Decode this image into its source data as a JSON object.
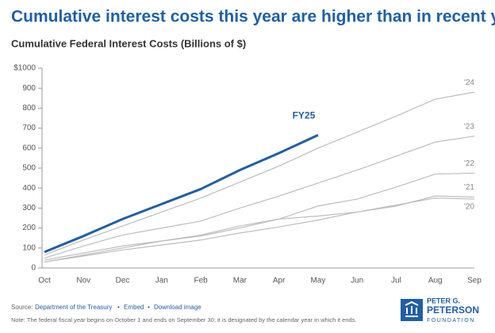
{
  "chart_data": {
    "type": "line",
    "title": "Cumulative interest costs this year are higher than in recent years",
    "subtitle": "Cumulative Federal Interest Costs (Billions of $)",
    "categories": [
      "Oct",
      "Nov",
      "Dec",
      "Jan",
      "Feb",
      "Mar",
      "Apr",
      "May",
      "Jun",
      "Jul",
      "Aug",
      "Sep"
    ],
    "series": [
      {
        "name": "FY25",
        "color": "#1f5fa6",
        "values": [
          80,
          160,
          245,
          320,
          395,
          490,
          575,
          665,
          null,
          null,
          null,
          null
        ]
      },
      {
        "name": "'24",
        "color": "#bdbdbd",
        "values": [
          65,
          140,
          210,
          280,
          350,
          430,
          510,
          600,
          680,
          760,
          845,
          880
        ]
      },
      {
        "name": "'23",
        "color": "#bdbdbd",
        "values": [
          50,
          110,
          165,
          200,
          235,
          300,
          360,
          425,
          490,
          560,
          630,
          660
        ]
      },
      {
        "name": "'22",
        "color": "#bdbdbd",
        "values": [
          40,
          75,
          110,
          135,
          160,
          200,
          245,
          310,
          345,
          405,
          470,
          475
        ]
      },
      {
        "name": "'21",
        "color": "#bdbdbd",
        "values": [
          30,
          65,
          100,
          135,
          165,
          210,
          245,
          260,
          280,
          310,
          360,
          355
        ]
      },
      {
        "name": "'20",
        "color": "#bdbdbd",
        "values": [
          30,
          60,
          90,
          115,
          140,
          175,
          205,
          240,
          280,
          315,
          350,
          345
        ]
      }
    ],
    "ylim": [
      0,
      1000
    ],
    "yticks": [
      0,
      100,
      200,
      300,
      400,
      500,
      600,
      700,
      800,
      900,
      {
        "value": 1000,
        "label": "$1000"
      }
    ],
    "source": {
      "label": "Source:",
      "links": [
        "Department of the Treasury",
        "Embed",
        "Download image"
      ]
    },
    "note": "Note: The federal fiscal year begins on October 1 and ends on September 30; it is designated by the calendar year in which it ends.",
    "logo": [
      "PETER G.",
      "PETERSON",
      "FOUNDATION"
    ]
  }
}
